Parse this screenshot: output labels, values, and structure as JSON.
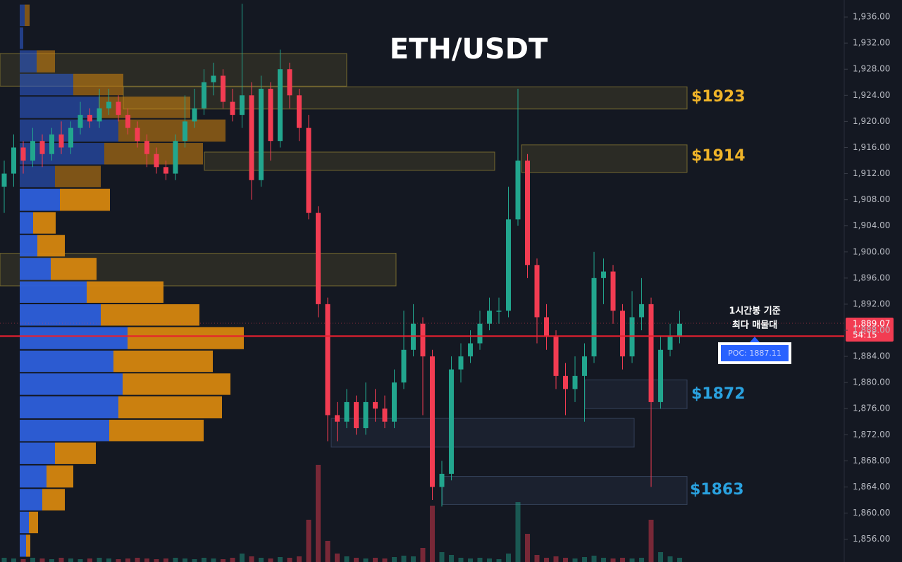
{
  "chart_data": {
    "type": "candlestick",
    "title": "ETH/USDT",
    "ylim": [
      1852.5,
      1938.6
    ],
    "yticks": [
      {
        "value": 1856,
        "label": "1,856.00"
      },
      {
        "value": 1860,
        "label": "1,860.00"
      },
      {
        "value": 1864,
        "label": "1,864.00"
      },
      {
        "value": 1868,
        "label": "1,868.00"
      },
      {
        "value": 1872,
        "label": "1,872.00"
      },
      {
        "value": 1876,
        "label": "1,876.00"
      },
      {
        "value": 1880,
        "label": "1,880.00"
      },
      {
        "value": 1884,
        "label": "1,884.00"
      },
      {
        "value": 1888,
        "label": "1,888.00"
      },
      {
        "value": 1892,
        "label": "1,892.00"
      },
      {
        "value": 1896,
        "label": "1,896.00"
      },
      {
        "value": 1900,
        "label": "1,900.00"
      },
      {
        "value": 1904,
        "label": "1,904.00"
      },
      {
        "value": 1908,
        "label": "1,908.00"
      },
      {
        "value": 1912,
        "label": "1,912.00"
      },
      {
        "value": 1916,
        "label": "1,916.00"
      },
      {
        "value": 1920,
        "label": "1,920.00"
      },
      {
        "value": 1924,
        "label": "1,924.00"
      },
      {
        "value": 1928,
        "label": "1,928.00"
      },
      {
        "value": 1932,
        "label": "1,932.00"
      },
      {
        "value": 1936,
        "label": "1,936.00"
      }
    ],
    "up_color": "#22a68e",
    "down_color": "#f23c52",
    "candles": {
      "open": [
        1910,
        1912,
        1916,
        1914,
        1917,
        1915,
        1918,
        1916,
        1919,
        1921,
        1920,
        1922,
        1923,
        1921,
        1919,
        1917,
        1915,
        1913,
        1912,
        1917,
        1920,
        1922,
        1926,
        1927,
        1923,
        1921,
        1924,
        1911,
        1925,
        1917,
        1928,
        1924,
        1919,
        1906,
        1892,
        1875,
        1874,
        1877,
        1873,
        1877,
        1876,
        1874,
        1880,
        1885,
        1889,
        1884,
        1864,
        1866,
        1882,
        1884,
        1886,
        1889,
        1891,
        1891,
        1905,
        1914,
        1898,
        1890,
        1887,
        1881,
        1879,
        1881,
        1884,
        1896,
        1897,
        1891,
        1884,
        1890,
        1892,
        1877,
        1885,
        1887
      ],
      "high": [
        1914,
        1918,
        1917,
        1919,
        1918,
        1919,
        1920,
        1920,
        1923,
        1922,
        1925,
        1925,
        1924,
        1922,
        1920,
        1918,
        1916,
        1914,
        1918,
        1924,
        1925,
        1928,
        1929,
        1928,
        1925,
        1938,
        1926,
        1927,
        1926,
        1931,
        1929,
        1925,
        1921,
        1907,
        1893,
        1877,
        1879,
        1878,
        1880,
        1879,
        1878,
        1882,
        1891,
        1892,
        1890,
        1885,
        1868,
        1884,
        1886,
        1888,
        1891,
        1893,
        1893,
        1910,
        1925,
        1915,
        1899,
        1892,
        1888,
        1883,
        1884,
        1886,
        1900,
        1899,
        1898,
        1892,
        1894,
        1896,
        1893,
        1887,
        1889,
        1891
      ],
      "low": [
        1906,
        1910,
        1912,
        1913,
        1913,
        1914,
        1915,
        1915,
        1918,
        1919,
        1919,
        1921,
        1920,
        1918,
        1916,
        1913,
        1912,
        1911,
        1911,
        1916,
        1919,
        1921,
        1924,
        1922,
        1920,
        1919,
        1908,
        1910,
        1914,
        1916,
        1922,
        1917,
        1905,
        1890,
        1871,
        1871,
        1873,
        1872,
        1872,
        1874,
        1873,
        1873,
        1879,
        1884,
        1875,
        1862,
        1861,
        1865,
        1880,
        1883,
        1885,
        1888,
        1889,
        1890,
        1904,
        1896,
        1886,
        1885,
        1879,
        1875,
        1877,
        1874,
        1883,
        1892,
        1889,
        1882,
        1883,
        1888,
        1864,
        1876,
        1884,
        1886
      ],
      "close": [
        1912,
        1916,
        1914,
        1917,
        1915,
        1918,
        1916,
        1919,
        1921,
        1920,
        1922,
        1923,
        1921,
        1919,
        1917,
        1915,
        1913,
        1912,
        1917,
        1920,
        1922,
        1926,
        1927,
        1923,
        1921,
        1924,
        1911,
        1925,
        1917,
        1928,
        1924,
        1919,
        1906,
        1892,
        1875,
        1874,
        1877,
        1873,
        1877,
        1876,
        1874,
        1880,
        1885,
        1889,
        1884,
        1864,
        1866,
        1882,
        1884,
        1886,
        1889,
        1891,
        1891,
        1905,
        1914,
        1898,
        1890,
        1887,
        1881,
        1879,
        1881,
        1884,
        1896,
        1897,
        1891,
        1884,
        1890,
        1892,
        1877,
        1885,
        1887,
        1889
      ]
    },
    "volume": [
      6,
      5,
      4,
      6,
      5,
      4,
      6,
      5,
      4,
      5,
      6,
      5,
      4,
      5,
      6,
      5,
      4,
      5,
      6,
      5,
      4,
      6,
      5,
      4,
      6,
      12,
      8,
      6,
      5,
      7,
      6,
      8,
      60,
      138,
      30,
      12,
      8,
      6,
      5,
      6,
      5,
      7,
      9,
      8,
      20,
      80,
      14,
      10,
      6,
      5,
      6,
      5,
      4,
      12,
      85,
      40,
      10,
      6,
      8,
      6,
      5,
      7,
      9,
      6,
      5,
      6,
      5,
      6,
      60,
      14,
      8,
      6
    ],
    "profile": {
      "bins": [
        1938.0,
        1934.5,
        1931.0,
        1927.4,
        1923.9,
        1920.4,
        1916.8,
        1913.3,
        1909.8,
        1906.2,
        1902.7,
        1899.2,
        1895.6,
        1892.1,
        1888.6,
        1885.0,
        1881.5,
        1878.0,
        1874.4,
        1870.9,
        1867.4,
        1863.8,
        1860.3,
        1856.8,
        1853.2
      ],
      "buy": [
        7,
        5,
        24,
        76,
        112,
        140,
        120,
        50,
        57,
        19,
        25,
        44,
        95,
        115,
        153,
        133,
        146,
        140,
        127,
        50,
        38,
        32,
        13,
        9
      ],
      "sell": [
        7,
        0,
        26,
        71,
        130,
        152,
        140,
        65,
        71,
        32,
        39,
        65,
        109,
        140,
        165,
        141,
        153,
        147,
        134,
        58,
        38,
        32,
        13,
        6
      ],
      "buy_color": "#2d5fdb",
      "sell_color": "#d5860f"
    },
    "zones": [
      {
        "top": 1930.4,
        "bottom": 1925.4,
        "color": "#b9a33a"
      },
      {
        "top": 1925.3,
        "bottom": 1921.9,
        "color": "#b9a33a"
      },
      {
        "top": 1915.3,
        "bottom": 1912.5,
        "color": "#b9a33a"
      },
      {
        "top": 1916.4,
        "bottom": 1912.2,
        "color": "#b9a33a"
      },
      {
        "top": 1899.8,
        "bottom": 1894.8,
        "color": "#b9a33a"
      },
      {
        "top": 1880.4,
        "bottom": 1876.0,
        "color": "#4a5f82"
      },
      {
        "top": 1874.5,
        "bottom": 1870.1,
        "color": "#4a5f82"
      },
      {
        "top": 1865.6,
        "bottom": 1861.3,
        "color": "#4a5f82"
      }
    ],
    "zone_labels": [
      "$1923",
      "$1914",
      "$1872",
      "$1863"
    ],
    "poc": {
      "value": 1887.11,
      "label": "POC: 1887.11"
    },
    "poc_line_color": "#e8202f",
    "last_price": {
      "value": 1889.07,
      "label": "1,889.07"
    },
    "countdown": "54:15",
    "annotation": [
      "1시간봉 기준",
      "최다 매물대"
    ]
  }
}
